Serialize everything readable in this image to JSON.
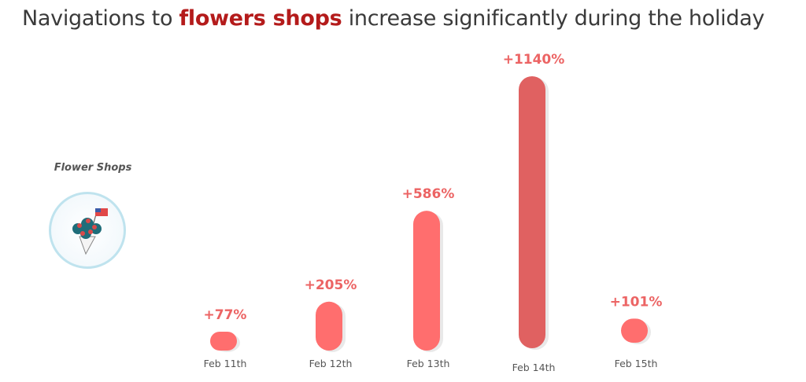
{
  "title": {
    "before": "Navigations to ",
    "highlight": "flowers shops",
    "after": " increase significantly during the holiday"
  },
  "category_label": "Flower Shops",
  "icon": "flower-bouquet-with-flag-icon",
  "colors": {
    "bar": "#ff6e6e",
    "bar_peak": "#e06161",
    "label": "#ec6464",
    "highlight": "#b41b1b",
    "tick": "#555555"
  },
  "chart_data": {
    "type": "bar",
    "title": "Navigations to flowers shops increase significantly during the holiday",
    "categories": [
      "Feb 11th",
      "Feb 12th",
      "Feb 13th",
      "Feb 14th",
      "Feb 15th"
    ],
    "series": [
      {
        "name": "Flower Shops",
        "values": [
          77,
          205,
          586,
          1140,
          101
        ]
      }
    ],
    "data_labels": [
      "+77%",
      "+205%",
      "+586%",
      "+1140%",
      "+101%"
    ],
    "xlabel": "",
    "ylabel": "",
    "grid": false,
    "unit": "%"
  }
}
